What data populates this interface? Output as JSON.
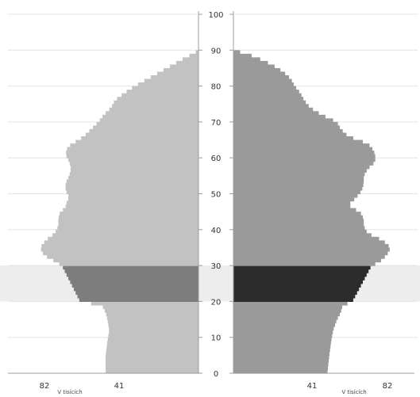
{
  "chart_data": {
    "type": "bar",
    "orientation": "horizontal",
    "subtype": "population-pyramid",
    "title": "",
    "xlabel_left": "V tisících",
    "xlabel_right": "V tisících",
    "ylabel": "",
    "y_ticks": [
      "0",
      "10",
      "20",
      "30",
      "40",
      "50",
      "60",
      "70",
      "80",
      "90",
      "100"
    ],
    "x_ticks_left": [
      "82",
      "41"
    ],
    "x_ticks_right": [
      "41",
      "82"
    ],
    "xlim": [
      0,
      92
    ],
    "ylim": [
      0,
      100
    ],
    "highlight_age_range": [
      20,
      30
    ],
    "grid": "horizontal",
    "colors": {
      "left_bar": "#c2c2c2",
      "right_bar": "#9a9a9a",
      "left_highlight": "#7d7d7d",
      "right_highlight": "#2c2c2c",
      "grid": "#e4e4e4",
      "axis": "#9c9c9c",
      "band": "#dcdcdc"
    },
    "series": [
      {
        "side": "left",
        "points": [
          [
            0,
            51
          ],
          [
            5,
            51
          ],
          [
            9,
            50
          ],
          [
            12,
            49
          ],
          [
            15,
            50
          ],
          [
            17,
            51
          ],
          [
            19,
            53
          ],
          [
            20,
            65
          ],
          [
            22,
            67
          ],
          [
            25,
            70
          ],
          [
            28,
            73
          ],
          [
            30,
            75
          ],
          [
            31,
            78
          ],
          [
            33,
            85
          ],
          [
            35,
            87
          ],
          [
            37,
            84
          ],
          [
            39,
            79
          ],
          [
            41,
            77
          ],
          [
            43,
            77
          ],
          [
            45,
            76
          ],
          [
            46,
            73
          ],
          [
            47,
            73
          ],
          [
            49,
            71
          ],
          [
            51,
            73
          ],
          [
            53,
            73
          ],
          [
            55,
            71
          ],
          [
            57,
            70
          ],
          [
            59,
            71
          ],
          [
            61,
            73
          ],
          [
            63,
            72
          ],
          [
            64,
            69
          ],
          [
            66,
            63
          ],
          [
            68,
            59
          ],
          [
            70,
            55
          ],
          [
            72,
            52
          ],
          [
            74,
            48
          ],
          [
            76,
            46
          ],
          [
            78,
            41
          ],
          [
            80,
            35
          ],
          [
            82,
            28
          ],
          [
            84,
            21
          ],
          [
            86,
            14
          ],
          [
            88,
            7
          ],
          [
            89,
            3
          ],
          [
            90,
            0
          ]
        ]
      },
      {
        "side": "right",
        "points": [
          [
            0,
            49
          ],
          [
            5,
            50
          ],
          [
            9,
            51
          ],
          [
            12,
            52
          ],
          [
            15,
            54
          ],
          [
            17,
            56
          ],
          [
            19,
            57
          ],
          [
            20,
            62
          ],
          [
            22,
            64
          ],
          [
            25,
            67
          ],
          [
            28,
            70
          ],
          [
            30,
            72
          ],
          [
            31,
            76
          ],
          [
            33,
            80
          ],
          [
            35,
            82
          ],
          [
            37,
            78
          ],
          [
            39,
            70
          ],
          [
            41,
            68
          ],
          [
            43,
            68
          ],
          [
            45,
            66
          ],
          [
            46,
            62
          ],
          [
            47,
            60
          ],
          [
            49,
            64
          ],
          [
            51,
            67
          ],
          [
            53,
            68
          ],
          [
            55,
            68
          ],
          [
            57,
            70
          ],
          [
            59,
            74
          ],
          [
            61,
            74
          ],
          [
            63,
            72
          ],
          [
            64,
            70
          ],
          [
            66,
            60
          ],
          [
            68,
            56
          ],
          [
            70,
            54
          ],
          [
            72,
            46
          ],
          [
            74,
            40
          ],
          [
            76,
            37
          ],
          [
            78,
            35
          ],
          [
            80,
            32
          ],
          [
            82,
            30
          ],
          [
            84,
            26
          ],
          [
            86,
            20
          ],
          [
            88,
            12
          ],
          [
            89,
            7
          ],
          [
            90,
            0
          ]
        ]
      }
    ]
  }
}
